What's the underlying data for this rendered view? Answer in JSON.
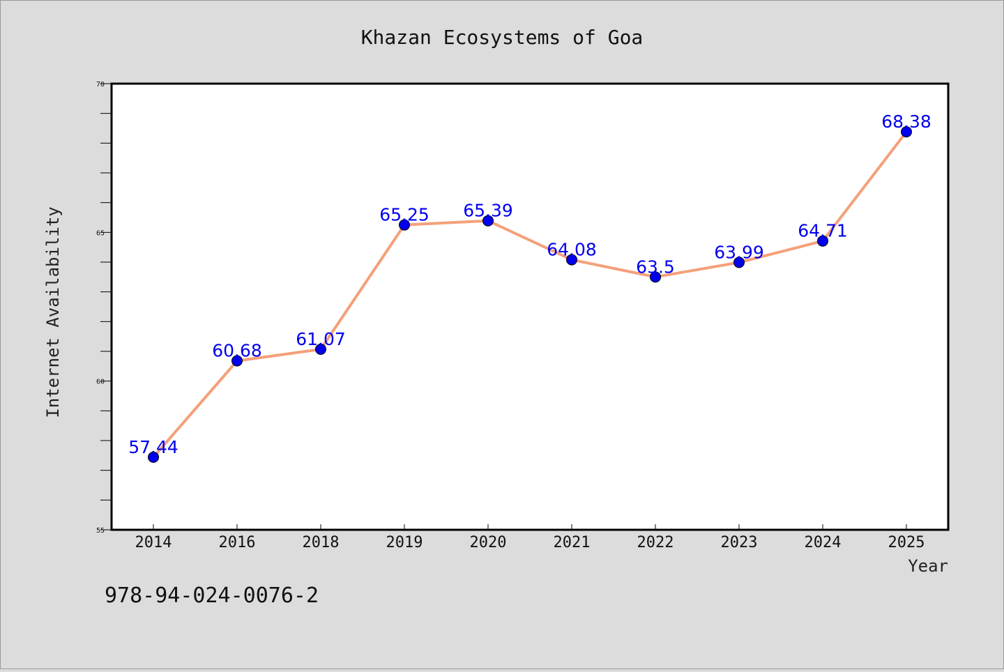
{
  "chart_data": {
    "type": "line",
    "title": "Khazan Ecosystems of Goa",
    "xlabel": "Year",
    "ylabel": "Internet Availability",
    "categories": [
      "2014",
      "2016",
      "2018",
      "2019",
      "2020",
      "2021",
      "2022",
      "2023",
      "2024",
      "2025"
    ],
    "series": [
      {
        "values": [
          57.44,
          60.68,
          61.07,
          65.25,
          65.39,
          64.08,
          63.5,
          63.99,
          64.71,
          68.38
        ],
        "labels": [
          "57.44",
          "60.68",
          "61.07",
          "65.25",
          "65.39",
          "64.08",
          "63.5",
          "63.99",
          "64.71",
          "68.38"
        ],
        "line_color": "#f4a07a",
        "marker_color": "#0000ee"
      }
    ],
    "ylim": [
      55,
      70
    ],
    "yticks": [
      "55",
      "60",
      "65",
      "70"
    ],
    "grid": false,
    "legend": "none"
  },
  "footer": {
    "isbn": "978-94-024-0076-2"
  },
  "colors": {
    "background": "#dcdcdc",
    "plot_background": "#ffffff"
  }
}
